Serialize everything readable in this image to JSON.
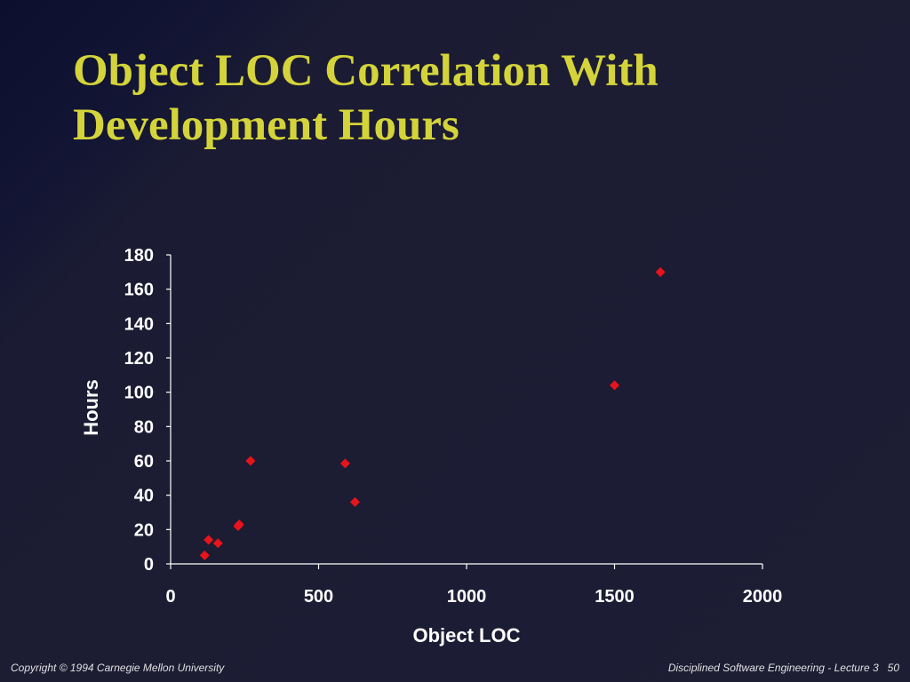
{
  "slide": {
    "title_line1": "Object LOC Correlation With",
    "title_line2": "Development Hours",
    "footer_left": "Copyright  © 1994 Carnegie Mellon University",
    "footer_right": "Disciplined Software Engineering - Lecture 3",
    "page_number": "50"
  },
  "colors": {
    "background": "#1c1c33",
    "title": "#d4d43a",
    "text": "#ffffff",
    "marker": "#e8141c"
  },
  "chart_data": {
    "type": "scatter",
    "title": "",
    "xlabel": "Object LOC",
    "ylabel": "Hours",
    "xlim": [
      0,
      2000
    ],
    "ylim": [
      0,
      180
    ],
    "xticks": [
      0,
      500,
      1000,
      1500,
      2000
    ],
    "yticks": [
      0,
      20,
      40,
      60,
      80,
      100,
      120,
      140,
      160,
      180
    ],
    "grid": false,
    "legend": "none",
    "marker": "diamond",
    "points": [
      {
        "x": 115,
        "y": 5
      },
      {
        "x": 128,
        "y": 14
      },
      {
        "x": 160,
        "y": 12
      },
      {
        "x": 228,
        "y": 22
      },
      {
        "x": 232,
        "y": 23
      },
      {
        "x": 270,
        "y": 60
      },
      {
        "x": 590,
        "y": 58.5
      },
      {
        "x": 623,
        "y": 36
      },
      {
        "x": 1500,
        "y": 104
      },
      {
        "x": 1655,
        "y": 170
      }
    ]
  }
}
